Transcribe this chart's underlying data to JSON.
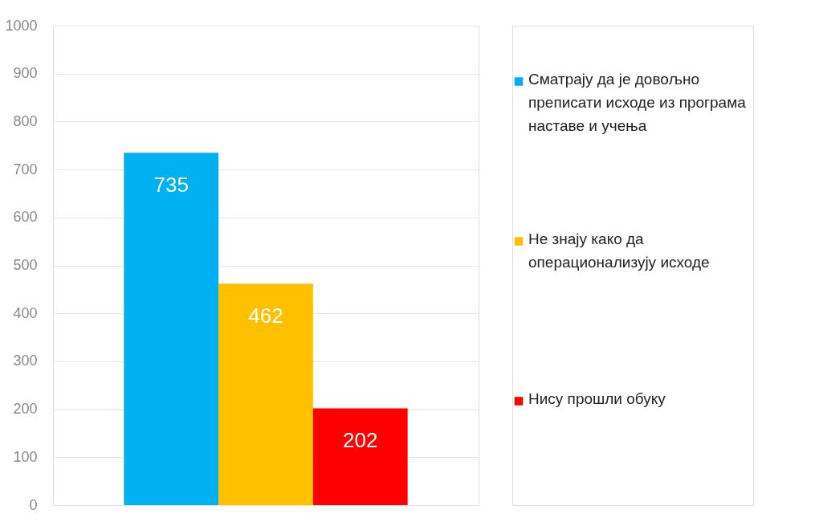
{
  "chart_data": {
    "type": "bar",
    "categories": [
      null
    ],
    "series": [
      {
        "name": "Сматрају да је довољно преписати исходе из програма наставе и учења",
        "color": "#00b0f0",
        "values": [
          735
        ]
      },
      {
        "name": "Не знају како да операционализују исходе",
        "color": "#ffc000",
        "values": [
          462
        ]
      },
      {
        "name": "Нису прошли обуку",
        "color": "#ff0000",
        "values": [
          202
        ]
      }
    ],
    "ylim": [
      0,
      1000
    ],
    "yticks": [
      0,
      100,
      200,
      300,
      400,
      500,
      600,
      700,
      800,
      900,
      1000
    ],
    "grid": "y",
    "legend": "right",
    "data_labels": true
  }
}
